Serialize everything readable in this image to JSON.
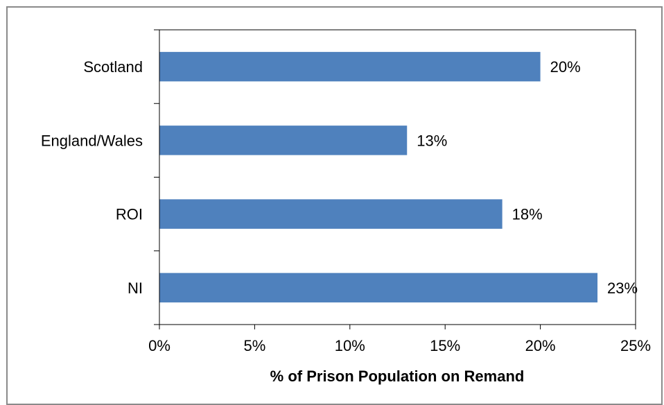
{
  "chart_data": {
    "type": "bar",
    "orientation": "horizontal",
    "categories": [
      "Scotland",
      "England/Wales",
      "ROI",
      "NI"
    ],
    "values": [
      20,
      13,
      18,
      23
    ],
    "data_labels": [
      "20%",
      "13%",
      "18%",
      "23%"
    ],
    "xlabel": "% of Prison Population on Remand",
    "ylabel": "",
    "xlim": [
      0,
      25
    ],
    "x_ticks": [
      0,
      5,
      10,
      15,
      20,
      25
    ],
    "x_tick_labels": [
      "0%",
      "5%",
      "10%",
      "15%",
      "20%",
      "25%"
    ],
    "grid": false,
    "legend": "none",
    "bar_color": "#4f81bd"
  }
}
